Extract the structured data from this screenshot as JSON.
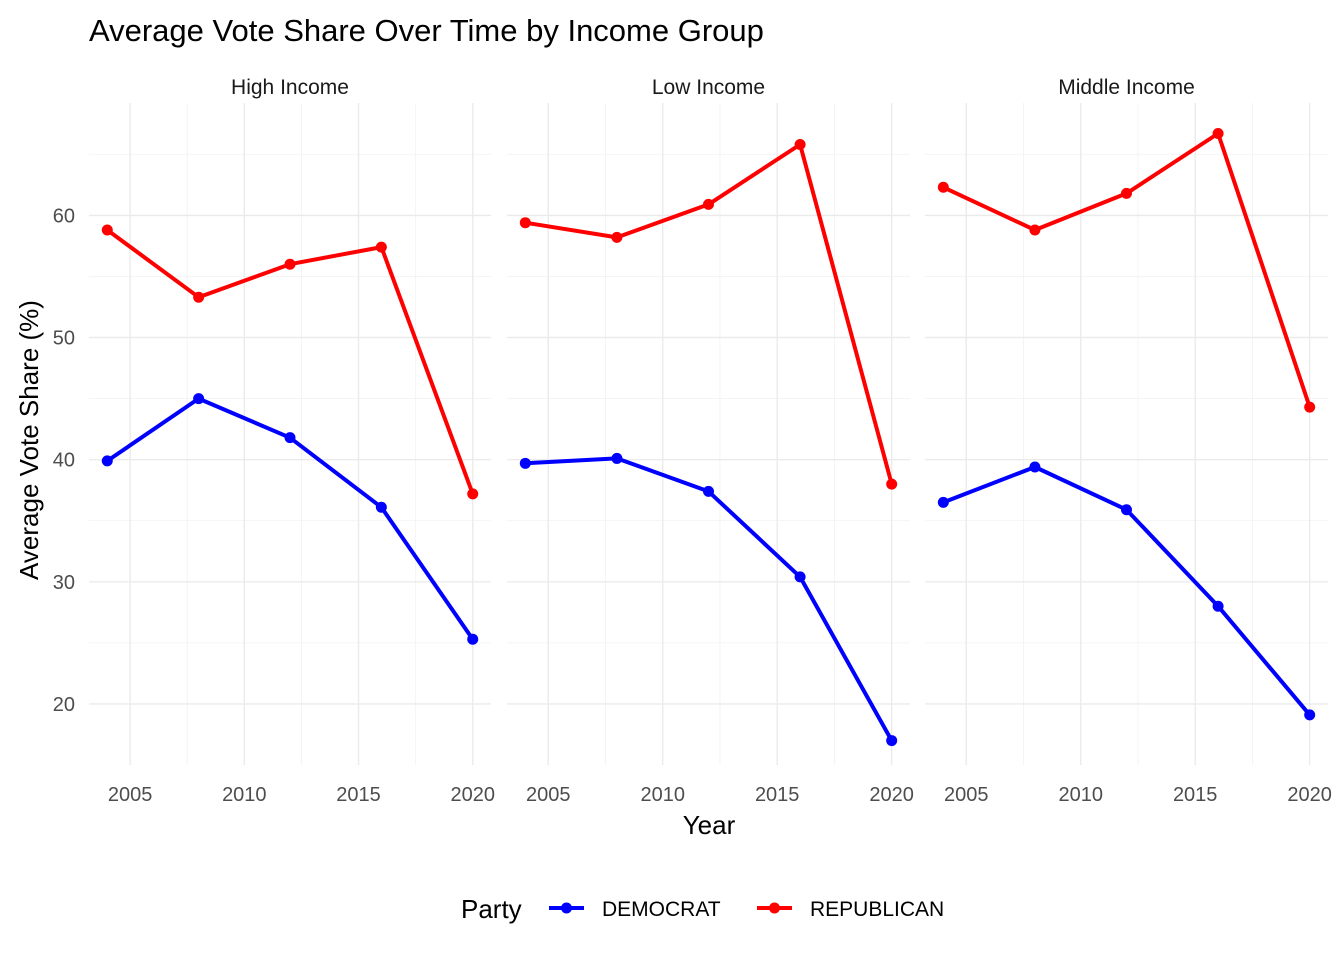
{
  "chart_data": {
    "type": "line",
    "title": "Average Vote Share Over Time by Income Group",
    "xlabel": "Year",
    "ylabel": "Average Vote Share (%)",
    "x_ticks": [
      2005,
      2010,
      2015,
      2020
    ],
    "y_ticks": [
      20,
      30,
      40,
      50,
      60
    ],
    "xlim": [
      2003.2,
      2020.8
    ],
    "ylim": [
      15.0,
      69.2
    ],
    "grid": true,
    "legend": {
      "title": "Party",
      "position": "bottom",
      "entries": [
        {
          "label": "DEMOCRAT",
          "color": "#0000ff"
        },
        {
          "label": "REPUBLICAN",
          "color": "#ff0000"
        }
      ]
    },
    "panels": [
      {
        "name": "High Income",
        "x": [
          2004,
          2008,
          2012,
          2016,
          2020
        ],
        "series": [
          {
            "name": "DEMOCRAT",
            "color": "#0000ff",
            "values": [
              39.9,
              45.0,
              41.8,
              36.1,
              25.3
            ]
          },
          {
            "name": "REPUBLICAN",
            "color": "#ff0000",
            "values": [
              58.8,
              53.3,
              56.0,
              57.4,
              37.2
            ]
          }
        ]
      },
      {
        "name": "Low Income",
        "x": [
          2004,
          2008,
          2012,
          2016,
          2020
        ],
        "series": [
          {
            "name": "DEMOCRAT",
            "color": "#0000ff",
            "values": [
              39.7,
              40.1,
              37.4,
              30.4,
              17.0
            ]
          },
          {
            "name": "REPUBLICAN",
            "color": "#ff0000",
            "values": [
              59.4,
              58.2,
              60.9,
              65.8,
              38.0
            ]
          }
        ]
      },
      {
        "name": "Middle Income",
        "x": [
          2004,
          2008,
          2012,
          2016,
          2020
        ],
        "series": [
          {
            "name": "DEMOCRAT",
            "color": "#0000ff",
            "values": [
              36.5,
              39.4,
              35.9,
              28.0,
              19.1
            ]
          },
          {
            "name": "REPUBLICAN",
            "color": "#ff0000",
            "values": [
              62.3,
              58.8,
              61.8,
              66.7,
              44.3
            ]
          }
        ]
      }
    ]
  }
}
